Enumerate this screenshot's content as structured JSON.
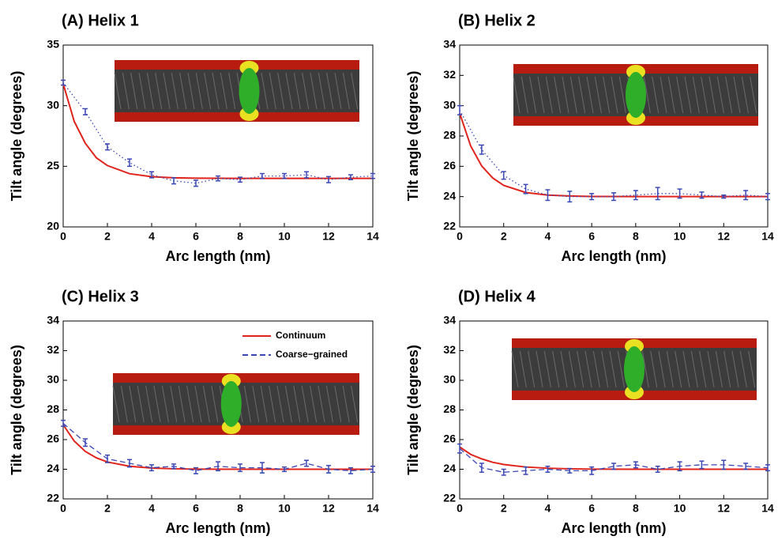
{
  "chart_data": [
    {
      "type": "line",
      "title": "(A) Helix 1",
      "x_label": "Arc length (nm)",
      "y_label": "Tilt angle (degrees)",
      "xlim": [
        0,
        14
      ],
      "xticks": [
        0,
        2,
        4,
        6,
        8,
        10,
        12,
        14
      ],
      "ylim": [
        20,
        35
      ],
      "yticks": [
        20,
        25,
        30,
        35
      ],
      "series": [
        {
          "color": "#e0241c",
          "dash": "solid",
          "x": [
            0,
            0.5,
            1,
            1.5,
            2,
            3,
            4,
            5,
            6,
            8,
            10,
            12,
            14
          ],
          "values": [
            31.8,
            28.7,
            26.9,
            25.7,
            25.06,
            24.39,
            24.14,
            24.05,
            24.02,
            24.0,
            24.0,
            24.0,
            24.0
          ]
        },
        {
          "color": "#3a47b5",
          "dash": "dotted",
          "x": [
            0,
            1,
            2,
            3,
            4,
            5,
            6,
            7,
            8,
            9,
            10,
            11,
            12,
            13,
            14
          ],
          "values": [
            31.9,
            29.5,
            26.6,
            25.3,
            24.3,
            23.8,
            23.6,
            24.0,
            23.9,
            24.2,
            24.2,
            24.3,
            23.9,
            24.1,
            24.2
          ],
          "errors": [
            0.2,
            0.25,
            0.25,
            0.3,
            0.25,
            0.25,
            0.25,
            0.2,
            0.2,
            0.2,
            0.2,
            0.25,
            0.25,
            0.2,
            0.2
          ]
        }
      ]
    },
    {
      "type": "line",
      "title": "(B) Helix 2",
      "x_label": "Arc length (nm)",
      "y_label": "Tilt angle (degrees)",
      "xlim": [
        0,
        14
      ],
      "xticks": [
        0,
        2,
        4,
        6,
        8,
        10,
        12,
        14
      ],
      "ylim": [
        22,
        34
      ],
      "yticks": [
        22,
        24,
        26,
        28,
        30,
        32,
        34
      ],
      "series": [
        {
          "color": "#e0241c",
          "dash": "solid",
          "x": [
            0,
            0.5,
            1,
            1.5,
            2,
            3,
            4,
            5,
            6,
            8,
            10,
            12,
            14
          ],
          "values": [
            29.5,
            27.34,
            26.02,
            25.23,
            24.74,
            24.27,
            24.1,
            24.04,
            24.01,
            24.0,
            24.0,
            24.0,
            24.0
          ]
        },
        {
          "color": "#3a47b5",
          "dash": "dotted",
          "x": [
            0,
            1,
            2,
            3,
            4,
            5,
            6,
            7,
            8,
            9,
            10,
            11,
            12,
            13,
            14
          ],
          "values": [
            29.7,
            27.1,
            25.4,
            24.5,
            24.1,
            24.0,
            24.0,
            24.0,
            24.1,
            24.2,
            24.2,
            24.1,
            24.0,
            24.1,
            24.0
          ],
          "errors": [
            0.3,
            0.3,
            0.25,
            0.3,
            0.35,
            0.35,
            0.2,
            0.25,
            0.3,
            0.4,
            0.3,
            0.2,
            0.1,
            0.3,
            0.2
          ]
        }
      ]
    },
    {
      "type": "line",
      "title": "(C) Helix 3",
      "x_label": "Arc length (nm)",
      "y_label": "Tilt angle (degrees)",
      "xlim": [
        0,
        14
      ],
      "xticks": [
        0,
        2,
        4,
        6,
        8,
        10,
        12,
        14
      ],
      "ylim": [
        22,
        34
      ],
      "yticks": [
        22,
        24,
        26,
        28,
        30,
        32,
        34
      ],
      "legend": "upper right",
      "series": [
        {
          "name": "Continuum",
          "color": "#e0241c",
          "dash": "solid",
          "x": [
            0,
            0.5,
            1,
            1.5,
            2,
            3,
            4,
            5,
            6,
            8,
            10,
            12,
            14
          ],
          "values": [
            27.0,
            25.9,
            25.2,
            24.77,
            24.49,
            24.2,
            24.08,
            24.03,
            24.01,
            24.0,
            24.0,
            24.0,
            24.0
          ]
        },
        {
          "name": "Coarse−grained",
          "color": "#3a47b5",
          "dash": "dashed",
          "x": [
            0,
            1,
            2,
            3,
            4,
            5,
            6,
            7,
            8,
            9,
            10,
            11,
            12,
            13,
            14
          ],
          "values": [
            27.1,
            25.8,
            24.7,
            24.4,
            24.1,
            24.2,
            23.9,
            24.2,
            24.1,
            24.1,
            24.0,
            24.4,
            24.0,
            23.9,
            24.0
          ],
          "errors": [
            0.2,
            0.25,
            0.25,
            0.25,
            0.2,
            0.15,
            0.2,
            0.3,
            0.25,
            0.35,
            0.15,
            0.2,
            0.25,
            0.2,
            0.2
          ]
        }
      ]
    },
    {
      "type": "line",
      "title": "(D) Helix 4",
      "x_label": "Arc length (nm)",
      "y_label": "Tilt angle (degrees)",
      "xlim": [
        0,
        14
      ],
      "xticks": [
        0,
        2,
        4,
        6,
        8,
        10,
        12,
        14
      ],
      "ylim": [
        22,
        34
      ],
      "yticks": [
        22,
        24,
        26,
        28,
        30,
        32,
        34
      ],
      "series": [
        {
          "color": "#e0241c",
          "dash": "solid",
          "x": [
            0,
            0.5,
            1,
            1.5,
            2,
            3,
            4,
            5,
            6,
            8,
            10,
            12,
            14
          ],
          "values": [
            25.5,
            25.0,
            24.7,
            24.47,
            24.32,
            24.15,
            24.07,
            24.03,
            24.01,
            24.0,
            24.0,
            24.0,
            24.0
          ]
        },
        {
          "color": "#3a47b5",
          "dash": "dashed",
          "x": [
            0,
            1,
            2,
            3,
            4,
            5,
            6,
            7,
            8,
            9,
            10,
            11,
            12,
            13,
            14
          ],
          "values": [
            25.4,
            24.1,
            23.8,
            23.9,
            24.0,
            23.9,
            23.9,
            24.2,
            24.3,
            24.0,
            24.2,
            24.3,
            24.3,
            24.2,
            24.1
          ],
          "errors": [
            0.3,
            0.3,
            0.2,
            0.25,
            0.2,
            0.15,
            0.25,
            0.2,
            0.2,
            0.2,
            0.3,
            0.25,
            0.3,
            0.2,
            0.2
          ]
        }
      ]
    }
  ]
}
